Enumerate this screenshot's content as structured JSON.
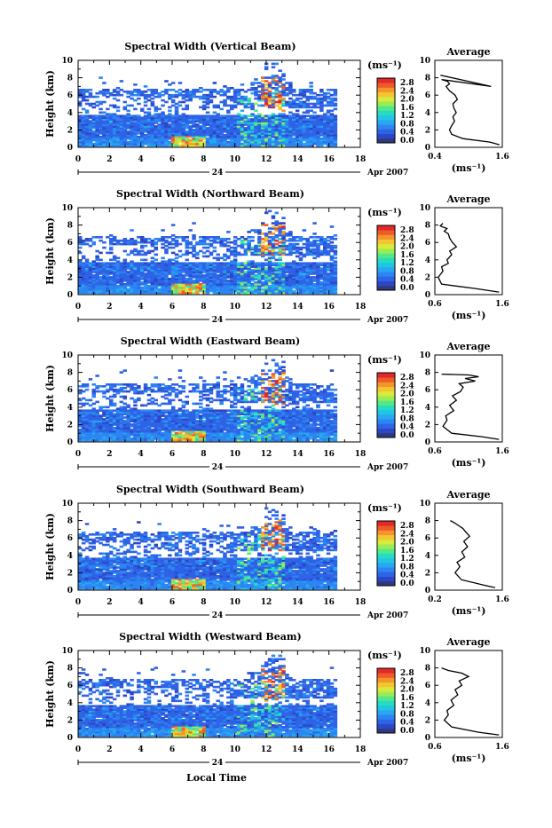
{
  "figure": {
    "x_label": "Local Time",
    "date_day": "24",
    "date_month_year": "Apr 2007",
    "x_ticks": [
      "0",
      "2",
      "4",
      "6",
      "8",
      "10",
      "12",
      "14",
      "16",
      "18"
    ]
  },
  "colorbar": {
    "unit_label": "(ms⁻¹)",
    "tick_labels": [
      "2.8",
      "2.4",
      "2.0",
      "1.6",
      "1.2",
      "0.8",
      "0.4",
      "0.0"
    ],
    "colors": [
      "#303a7a",
      "#2b47c8",
      "#2f63e6",
      "#2b86f2",
      "#27a8f0",
      "#22c6e4",
      "#26dcc0",
      "#52e88a",
      "#9aec55",
      "#d8ea3a",
      "#f4c431",
      "#f4942a",
      "#ee5a2a",
      "#e02a2a"
    ]
  },
  "chart_data": [
    {
      "type": "heatmap",
      "title": "Spectral Width (Vertical Beam)",
      "ylabel": "Height (km)",
      "xlim": [
        0,
        18
      ],
      "ylim": [
        0,
        10
      ],
      "y_ticks": [
        "0",
        "2",
        "4",
        "6",
        "8",
        "10"
      ],
      "value_range_ms": [
        0.0,
        2.8
      ],
      "data_extent_hours": [
        0,
        16.3
      ]
    },
    {
      "type": "line",
      "title": "Average",
      "xlabel": "(ms⁻¹)",
      "x_ticks": [
        "0.4",
        "1.6"
      ],
      "xlim": [
        0.4,
        1.6
      ],
      "ylim": [
        0,
        10
      ],
      "y_ticks": [
        "0",
        "2",
        "4",
        "6",
        "8",
        "10"
      ],
      "series": [
        {
          "x": [
            1.55,
            1.38,
            0.9,
            0.7,
            0.66,
            0.7,
            0.75,
            0.72,
            0.78,
            0.74,
            0.72,
            0.8,
            0.76,
            0.66,
            0.6,
            0.66,
            0.62,
            0.52,
            1.4,
            0.5
          ],
          "y": [
            0.3,
            0.6,
            1.0,
            1.5,
            2.0,
            2.5,
            3.0,
            3.5,
            4.0,
            4.5,
            5.0,
            5.5,
            6.0,
            6.5,
            7.0,
            7.3,
            7.6,
            7.8,
            7.0,
            8.3
          ]
        }
      ]
    },
    {
      "type": "heatmap",
      "title": "Spectral Width (Northward Beam)",
      "ylabel": "Height (km)",
      "xlim": [
        0,
        18
      ],
      "ylim": [
        0,
        10
      ],
      "y_ticks": [
        "0",
        "2",
        "4",
        "6",
        "8",
        "10"
      ],
      "value_range_ms": [
        0.0,
        2.8
      ],
      "data_extent_hours": [
        0,
        16.3
      ]
    },
    {
      "type": "line",
      "title": "Average",
      "xlabel": "(ms⁻¹)",
      "x_ticks": [
        "0.6",
        "1.6"
      ],
      "xlim": [
        0.6,
        1.6
      ],
      "ylim": [
        0,
        10
      ],
      "y_ticks": [
        "0",
        "2",
        "4",
        "6",
        "8",
        "10"
      ],
      "series": [
        {
          "x": [
            1.55,
            1.2,
            0.7,
            0.65,
            0.72,
            0.7,
            0.8,
            0.78,
            0.85,
            0.82,
            0.92,
            0.86,
            0.82,
            0.8,
            0.74,
            0.78,
            0.68,
            0.72
          ],
          "y": [
            0.3,
            0.7,
            1.2,
            2.0,
            2.7,
            3.2,
            3.6,
            4.0,
            4.6,
            5.0,
            5.5,
            6.0,
            6.5,
            7.0,
            7.3,
            7.6,
            7.9,
            8.2
          ]
        }
      ]
    },
    {
      "type": "heatmap",
      "title": "Spectral Width (Eastward Beam)",
      "ylabel": "Height (km)",
      "xlim": [
        0,
        18
      ],
      "ylim": [
        0,
        10
      ],
      "y_ticks": [
        "0",
        "2",
        "4",
        "6",
        "8",
        "10"
      ],
      "value_range_ms": [
        0.0,
        2.8
      ],
      "data_extent_hours": [
        0,
        16.3
      ]
    },
    {
      "type": "line",
      "title": "Average",
      "xlabel": "(ms⁻¹)",
      "x_ticks": [
        "0.6",
        "1.6"
      ],
      "xlim": [
        0.6,
        1.6
      ],
      "ylim": [
        0,
        10
      ],
      "y_ticks": [
        "0",
        "2",
        "4",
        "6",
        "8",
        "10"
      ],
      "series": [
        {
          "x": [
            1.55,
            1.3,
            0.85,
            0.72,
            0.78,
            0.76,
            0.88,
            0.82,
            0.92,
            0.86,
            0.98,
            1.02,
            0.96,
            1.2,
            1.05,
            1.25,
            1.1,
            0.7
          ],
          "y": [
            0.3,
            0.6,
            1.0,
            1.8,
            2.5,
            3.0,
            3.6,
            4.2,
            4.8,
            5.3,
            5.8,
            6.3,
            6.7,
            7.0,
            7.3,
            7.5,
            7.7,
            7.8
          ]
        }
      ]
    },
    {
      "type": "heatmap",
      "title": "Spectral Width (Southward Beam)",
      "ylabel": "Height (km)",
      "xlim": [
        0,
        18
      ],
      "ylim": [
        0,
        10
      ],
      "y_ticks": [
        "0",
        "2",
        "4",
        "6",
        "8",
        "10"
      ],
      "value_range_ms": [
        0.0,
        2.8
      ],
      "data_extent_hours": [
        0,
        16.3
      ]
    },
    {
      "type": "line",
      "title": "Average",
      "xlabel": "(ms⁻¹)",
      "x_ticks": [
        "0.2",
        "1.6"
      ],
      "xlim": [
        0.2,
        1.6
      ],
      "ylim": [
        0,
        10
      ],
      "y_ticks": [
        "0",
        "2",
        "4",
        "6",
        "8",
        "10"
      ],
      "series": [
        {
          "x": [
            1.45,
            1.2,
            0.75,
            0.62,
            0.72,
            0.66,
            0.82,
            0.76,
            0.88,
            0.8,
            0.92,
            0.84,
            0.78,
            0.7,
            0.62,
            0.52
          ],
          "y": [
            0.3,
            0.6,
            1.2,
            2.0,
            2.7,
            3.2,
            3.8,
            4.4,
            5.0,
            5.6,
            6.2,
            6.7,
            7.1,
            7.4,
            7.7,
            8.0
          ]
        }
      ]
    },
    {
      "type": "heatmap",
      "title": "Spectral Width (Westward Beam)",
      "ylabel": "Height (km)",
      "xlim": [
        0,
        18
      ],
      "ylim": [
        0,
        10
      ],
      "y_ticks": [
        "0",
        "2",
        "4",
        "6",
        "8",
        "10"
      ],
      "value_range_ms": [
        0.0,
        2.8
      ],
      "data_extent_hours": [
        0,
        16.3
      ]
    },
    {
      "type": "line",
      "title": "Average",
      "xlabel": "(ms⁻¹)",
      "x_ticks": [
        "0.6",
        "1.6"
      ],
      "xlim": [
        0.6,
        1.6
      ],
      "ylim": [
        0,
        10
      ],
      "y_ticks": [
        "0",
        "2",
        "4",
        "6",
        "8",
        "10"
      ],
      "series": [
        {
          "x": [
            1.55,
            1.25,
            0.85,
            0.74,
            0.8,
            0.78,
            0.88,
            0.84,
            0.94,
            0.9,
            1.0,
            0.96,
            1.1,
            1.0,
            0.8,
            0.7
          ],
          "y": [
            0.3,
            0.6,
            1.2,
            2.0,
            2.6,
            3.1,
            3.7,
            4.3,
            4.9,
            5.5,
            6.0,
            6.5,
            7.0,
            7.4,
            7.7,
            8.0
          ]
        }
      ]
    }
  ]
}
